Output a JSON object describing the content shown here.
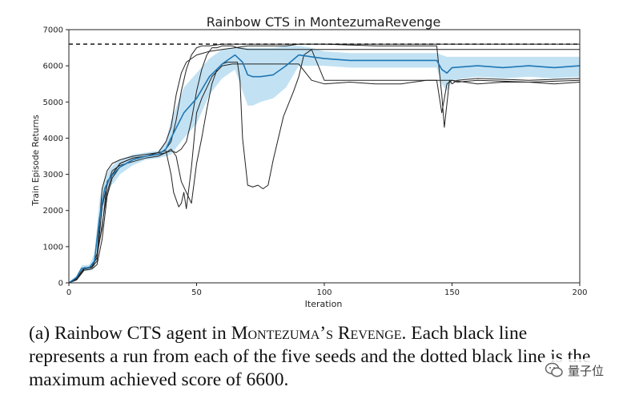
{
  "chart_data": {
    "type": "line",
    "title": "Rainbow CTS in MontezumaRevenge",
    "xlabel": "Iteration",
    "ylabel": "Train Episode Returns",
    "xlim": [
      0,
      200
    ],
    "ylim": [
      0,
      7000
    ],
    "xticks": [
      0,
      50,
      100,
      150,
      200
    ],
    "yticks": [
      0,
      1000,
      2000,
      3000,
      4000,
      5000,
      6000,
      7000
    ],
    "grid": false,
    "reference_line": {
      "y": 6600,
      "style": "dashed",
      "color": "#000000"
    },
    "colors": {
      "mean": "#1f77b4",
      "band": "#add8ef",
      "runs": "#222222"
    },
    "mean": {
      "x": [
        0,
        3,
        5,
        8,
        10,
        12,
        14,
        16,
        18,
        20,
        25,
        30,
        35,
        38,
        40,
        45,
        50,
        55,
        60,
        65,
        68,
        70,
        72,
        75,
        80,
        85,
        90,
        95,
        100,
        110,
        120,
        130,
        140,
        144,
        146,
        148,
        150,
        160,
        170,
        180,
        190,
        200
      ],
      "y": [
        0,
        150,
        400,
        420,
        600,
        1800,
        2600,
        2900,
        3050,
        3200,
        3400,
        3500,
        3550,
        3700,
        4000,
        4700,
        5100,
        5700,
        6050,
        6300,
        6100,
        5750,
        5700,
        5700,
        5750,
        6000,
        6300,
        6250,
        6200,
        6150,
        6150,
        6150,
        6150,
        6150,
        5900,
        5800,
        5950,
        6000,
        5950,
        6000,
        5950,
        6000
      ]
    },
    "band": {
      "upper": [
        0,
        200,
        480,
        500,
        800,
        2300,
        2900,
        3150,
        3300,
        3400,
        3550,
        3600,
        3650,
        3900,
        4500,
        5400,
        5800,
        6200,
        6450,
        6500,
        6500,
        6500,
        6500,
        6500,
        6500,
        6550,
        6550,
        6500,
        6400,
        6350,
        6350,
        6350,
        6350,
        6350,
        6300,
        6250,
        6250,
        6250,
        6250,
        6250,
        6250,
        6250
      ],
      "lower": [
        0,
        100,
        320,
        340,
        400,
        1300,
        2300,
        2650,
        2800,
        3000,
        3250,
        3400,
        3450,
        3500,
        3550,
        4000,
        4400,
        5200,
        5650,
        5900,
        5300,
        4900,
        4900,
        5000,
        5100,
        5400,
        6000,
        6000,
        6000,
        5950,
        5950,
        5950,
        5950,
        5950,
        5500,
        5300,
        5600,
        5700,
        5650,
        5700,
        5650,
        5700
      ]
    },
    "runs": [
      {
        "x": [
          0,
          3,
          6,
          9,
          11,
          13,
          15,
          17,
          20,
          25,
          30,
          35,
          38,
          40,
          42,
          44,
          46,
          50,
          55,
          60,
          65,
          70,
          75,
          80,
          85,
          90,
          95,
          100,
          120,
          140,
          144,
          146,
          148,
          150,
          160,
          180,
          200
        ],
        "y": [
          0,
          100,
          400,
          450,
          700,
          2600,
          3100,
          3300,
          3400,
          3500,
          3550,
          3600,
          3900,
          4300,
          5200,
          5800,
          6100,
          6300,
          6400,
          6450,
          6500,
          6550,
          6550,
          6550,
          6550,
          6600,
          6600,
          6600,
          6600,
          6600,
          6600,
          6600,
          6600,
          6600,
          6600,
          6600,
          6600
        ]
      },
      {
        "x": [
          0,
          3,
          6,
          9,
          11,
          13,
          15,
          17,
          20,
          25,
          30,
          35,
          38,
          40,
          42,
          44,
          46,
          48,
          50,
          52,
          55,
          58,
          60,
          62,
          65,
          70,
          75,
          80,
          85,
          90,
          95,
          100,
          120,
          140,
          144,
          146,
          147,
          149,
          150,
          152,
          160,
          180,
          200
        ],
        "y": [
          0,
          120,
          420,
          430,
          800,
          1500,
          2800,
          3000,
          3300,
          3450,
          3500,
          3550,
          3700,
          3900,
          4500,
          5300,
          5900,
          6300,
          6500,
          6550,
          6550,
          6580,
          6600,
          6600,
          6600,
          6600,
          6600,
          6600,
          6600,
          6600,
          6600,
          6600,
          6550,
          6550,
          6550,
          5200,
          4300,
          5600,
          5500,
          5600,
          5650,
          5600,
          5650
        ]
      },
      {
        "x": [
          0,
          3,
          6,
          9,
          11,
          13,
          15,
          17,
          20,
          25,
          30,
          35,
          38,
          40,
          42,
          44,
          46,
          48,
          50,
          52,
          54,
          56,
          58,
          60,
          62,
          64,
          66,
          70,
          75,
          80,
          85,
          90,
          95,
          100,
          120,
          140,
          144,
          146,
          148,
          150,
          152,
          160,
          180,
          200
        ],
        "y": [
          0,
          100,
          380,
          420,
          600,
          2100,
          2700,
          3100,
          3250,
          3350,
          3450,
          3500,
          3600,
          3650,
          3600,
          3700,
          3900,
          4500,
          5300,
          5900,
          6300,
          6500,
          6500,
          6550,
          6550,
          6550,
          6500,
          6450,
          6450,
          6450,
          6450,
          6450,
          6450,
          5600,
          5600,
          5600,
          5600,
          4700,
          5500,
          5600,
          5550,
          5600,
          5550,
          5600
        ]
      },
      {
        "x": [
          0,
          3,
          6,
          9,
          11,
          13,
          15,
          17,
          20,
          25,
          30,
          35,
          38,
          40,
          42,
          44,
          46,
          48,
          50,
          52,
          54,
          56,
          58,
          60,
          62,
          64,
          66,
          67,
          68,
          70,
          72,
          74,
          76,
          78,
          80,
          84,
          88,
          90,
          92,
          95,
          100,
          120,
          140,
          160,
          180,
          200
        ],
        "y": [
          0,
          80,
          350,
          380,
          500,
          1200,
          2400,
          2900,
          3200,
          3400,
          3500,
          3550,
          3600,
          3700,
          3500,
          2800,
          2500,
          2200,
          3300,
          4000,
          4800,
          5500,
          5900,
          6050,
          6100,
          6100,
          6100,
          5600,
          4000,
          2700,
          2650,
          2700,
          2600,
          2700,
          3400,
          4600,
          5300,
          5700,
          6300,
          6450,
          6450,
          6450,
          6450,
          6450,
          6450,
          6450
        ]
      },
      {
        "x": [
          0,
          3,
          6,
          9,
          11,
          13,
          15,
          17,
          20,
          25,
          30,
          35,
          38,
          40,
          41,
          42,
          43,
          44,
          45,
          46,
          48,
          50,
          52,
          54,
          56,
          58,
          60,
          64,
          70,
          75,
          80,
          85,
          90,
          95,
          100,
          110,
          120,
          130,
          140,
          150,
          160,
          170,
          180,
          190,
          200
        ],
        "y": [
          0,
          100,
          400,
          430,
          700,
          1600,
          2500,
          3000,
          3300,
          3450,
          3500,
          3600,
          3650,
          3000,
          2500,
          2300,
          2100,
          2200,
          2500,
          2050,
          3200,
          4700,
          5100,
          5400,
          5700,
          5850,
          6000,
          6050,
          6050,
          6050,
          6050,
          6050,
          6050,
          5600,
          5500,
          5550,
          5500,
          5500,
          5600,
          5600,
          5500,
          5550,
          5550,
          5500,
          5550
        ]
      }
    ]
  },
  "caption": {
    "prefix": "(a) Rainbow CTS agent in M",
    "sc1": "ontezuma",
    "mid": "’",
    "sc2": "s",
    "mid2": " R",
    "sc3": "evenge",
    "suffix": ". Each black line represents a run from each of the five seeds and the dotted black line is the maximum achieved score of 6600."
  },
  "watermark": {
    "text": "量子位",
    "icon": "wechat-bubble-icon"
  }
}
